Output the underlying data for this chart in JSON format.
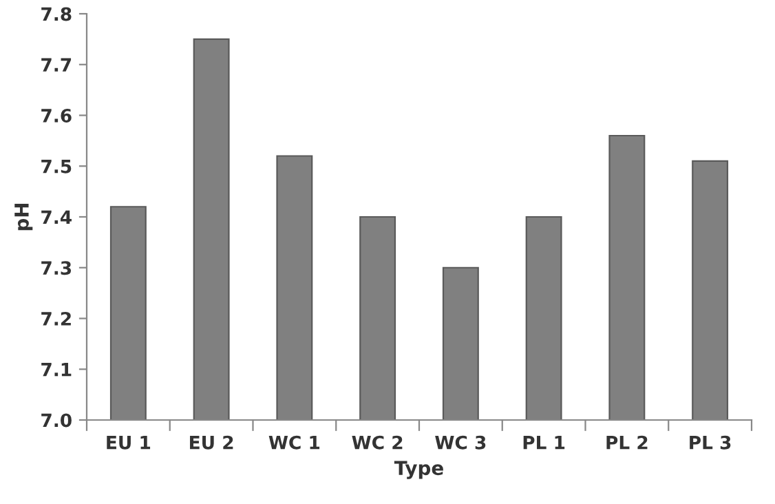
{
  "chart_data": {
    "type": "bar",
    "xlabel": "Type",
    "ylabel": "pH",
    "categories": [
      "EU 1",
      "EU 2",
      "WC 1",
      "WC 2",
      "WC 3",
      "PL 1",
      "PL 2",
      "PL 3"
    ],
    "values": [
      7.42,
      7.75,
      7.52,
      7.4,
      7.3,
      7.4,
      7.56,
      7.51
    ],
    "color": "#808080",
    "ylim": [
      7.0,
      7.8
    ],
    "yticks": [
      {
        "value": 7.0,
        "label": "7.0"
      },
      7.1,
      7.2,
      7.3,
      7.4,
      7.5,
      7.6,
      7.7,
      7.8
    ],
    "grid": false
  }
}
